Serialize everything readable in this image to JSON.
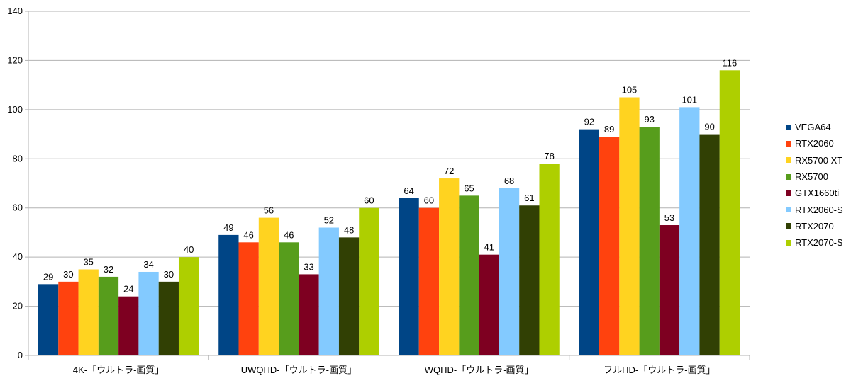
{
  "chart_data": {
    "type": "bar",
    "categories": [
      "4K-「ウルトラ-画質」",
      "UWQHD-「ウルトラ-画質」",
      "WQHD-「ウルトラ-画質」",
      "フルHD-「ウルトラ-画質」"
    ],
    "series": [
      {
        "name": "VEGA64",
        "color": "#004586",
        "values": [
          29,
          49,
          64,
          92
        ]
      },
      {
        "name": "RTX2060",
        "color": "#FF420E",
        "values": [
          30,
          46,
          60,
          89
        ]
      },
      {
        "name": "RX5700 XT",
        "color": "#FFD320",
        "values": [
          35,
          56,
          72,
          105
        ]
      },
      {
        "name": "RX5700",
        "color": "#579D1C",
        "values": [
          32,
          46,
          65,
          93
        ]
      },
      {
        "name": "GTX1660ti",
        "color": "#7E0021",
        "values": [
          24,
          33,
          41,
          53
        ]
      },
      {
        "name": "RTX2060-S",
        "color": "#83CAFF",
        "values": [
          34,
          52,
          68,
          101
        ]
      },
      {
        "name": "RTX2070",
        "color": "#314004",
        "values": [
          30,
          48,
          61,
          90
        ]
      },
      {
        "name": "RTX2070-S",
        "color": "#AECF00",
        "values": [
          40,
          60,
          78,
          116
        ]
      }
    ],
    "ylim": [
      0,
      140
    ],
    "yticks": [
      0,
      20,
      40,
      60,
      80,
      100,
      120,
      140
    ],
    "grid": true,
    "legend_position": "right",
    "data_labels": true
  }
}
